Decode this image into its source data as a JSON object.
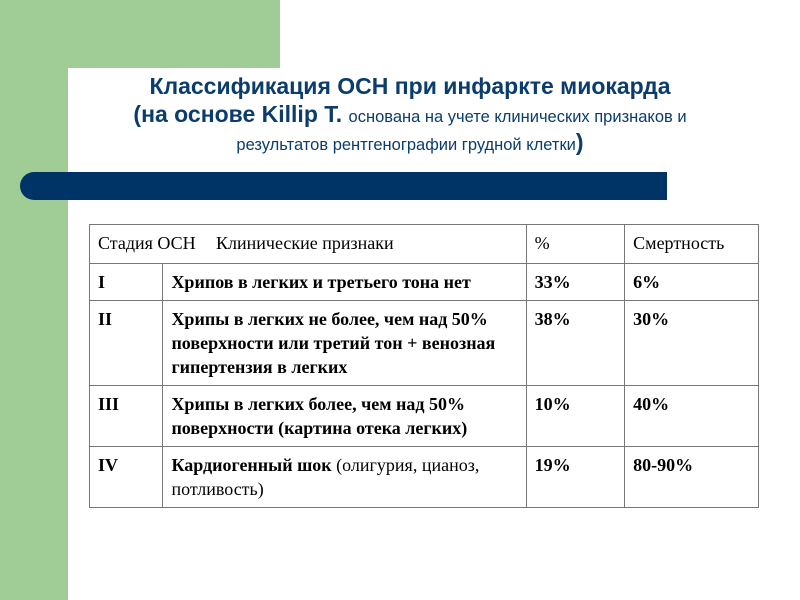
{
  "title": {
    "line1": "Классификация ОСН при инфаркте миокарда",
    "line2_bold": "(на основе Killip T. ",
    "line2_small": "основана на учете клинических  признаков и",
    "line3_text": "результатов рентгенографии  грудной клетки",
    "line3_close": ")"
  },
  "table": {
    "header": {
      "stage": "Стадия ОСН",
      "signs": "Клинические признаки",
      "percent": "%",
      "mortality": "Смертность"
    },
    "rows": [
      {
        "stage": "I",
        "signs": "Хрипов в легких и третьего тона нет",
        "signs_extra": "",
        "percent": "33%",
        "mortality": "6%"
      },
      {
        "stage": "II",
        "signs": "Хрипы в легких не более, чем над 50% поверхности или третий тон + венозная гипертензия в легких",
        "signs_extra": "",
        "percent": "38%",
        "mortality": "30%"
      },
      {
        "stage": "III",
        "signs": "Хрипы в легких более, чем над 50% поверхности (картина отека легких)",
        "signs_extra": "",
        "percent": "10%",
        "mortality": "40%"
      },
      {
        "stage": "IV",
        "signs": " Кардиогенный шок",
        "signs_extra": " (олигурия, цианоз, потливость)",
        "percent": "19%",
        "mortality": "80-90%"
      }
    ]
  },
  "colors": {
    "accent_green": "#a0cd96",
    "title_blue": "#0b3c6e",
    "bar_navy": "#003366"
  }
}
